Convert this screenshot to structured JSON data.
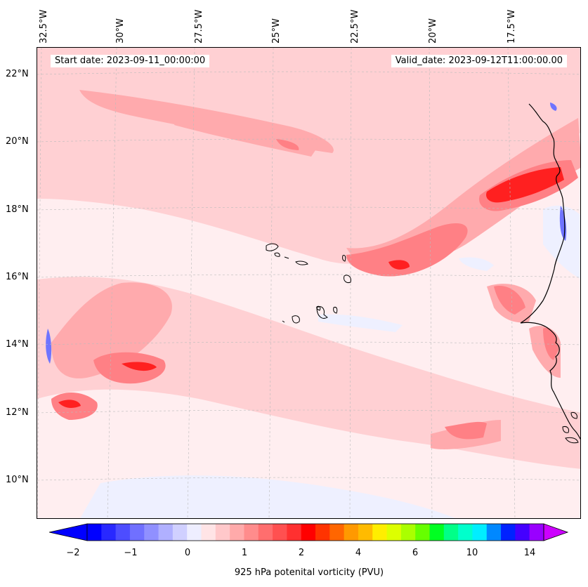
{
  "header": {
    "start_date": "Start date: 2023-09-11_00:00:00",
    "valid_date": "Valid_date: 2023-09-12T11:00:00.00"
  },
  "longitude_labels": [
    "32.5°W",
    "30°W",
    "27.5°W",
    "25°W",
    "22.5°W",
    "20°W",
    "17.5°W"
  ],
  "latitude_labels": [
    "22°N",
    "20°N",
    "18°N",
    "16°N",
    "14°N",
    "12°N",
    "10°N"
  ],
  "colorbar": {
    "label": "925 hPa potenital vorticity (PVU)",
    "tick_labels": [
      "−2",
      "−1",
      "0",
      "1",
      "2",
      "4",
      "6",
      "10",
      "14"
    ],
    "colors": [
      "#0000ff",
      "#2828ff",
      "#4d4dff",
      "#7070ff",
      "#9090ff",
      "#b0b0ff",
      "#d0d0ff",
      "#eeeeff",
      "#ffe4e6",
      "#ffc8ca",
      "#ffaaaa",
      "#ff8c8c",
      "#ff6e6e",
      "#ff5050",
      "#ff3030",
      "#ff0000",
      "#ff3300",
      "#ff6600",
      "#ff9900",
      "#ffbb00",
      "#ffee00",
      "#ddff00",
      "#aaff00",
      "#66ff00",
      "#00ff22",
      "#00ff88",
      "#00ffcc",
      "#00eeff",
      "#0088ff",
      "#0022ff",
      "#4400ff",
      "#9900ff"
    ],
    "extend_min_color": "#0000ff",
    "extend_max_color": "#cc00ff"
  },
  "colors": {
    "background": "#ffeef0",
    "light_pink": "#ffd0d3",
    "pink": "#ffaaad",
    "salmon": "#ff8085",
    "red": "#ff3a3a",
    "deep_red": "#ff0b0b",
    "light_blue": "#eef0ff",
    "blue": "#6f74ff",
    "coast": "#000000"
  }
}
